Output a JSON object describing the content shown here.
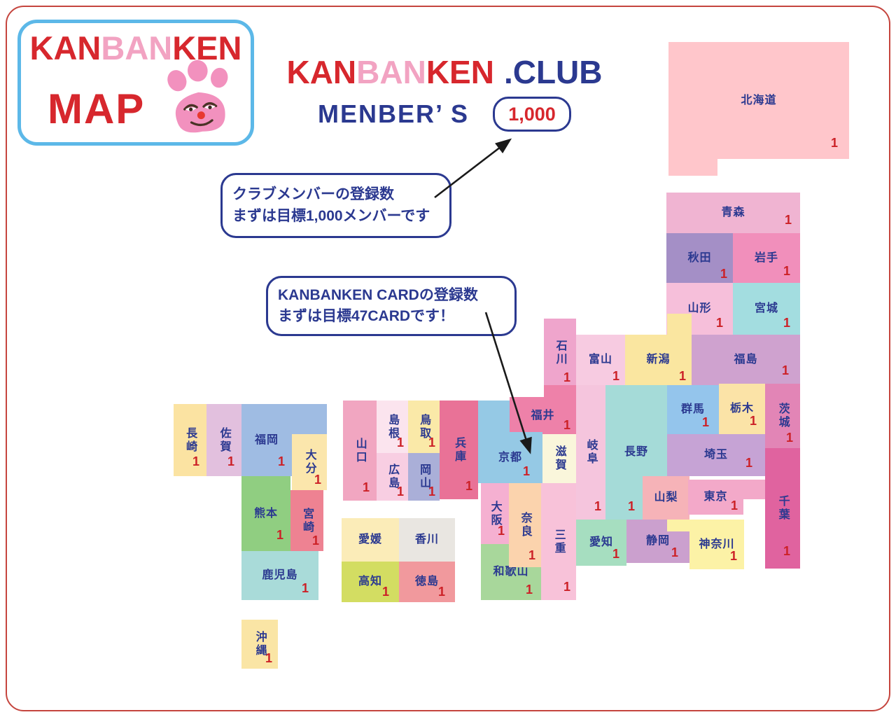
{
  "colors": {
    "brand_red": "#D7272D",
    "brand_pink": "#F2A3C2",
    "brand_navy": "#2B3990",
    "count_red": "#CC2127",
    "page_border_red": "#C5453E",
    "logo_border_blue": "#5CB8E8",
    "paw_pink": "#F291BE"
  },
  "logo": {
    "word_parts": [
      {
        "text": "KAN",
        "color": "#D7272D"
      },
      {
        "text": "BAN",
        "color": "#F2A3C2"
      },
      {
        "text": "KEN",
        "color": "#D7272D"
      }
    ],
    "map_label": "MAP",
    "map_label_color": "#D7272D",
    "paw_icon": "paw-face-icon"
  },
  "title": {
    "word_parts": [
      {
        "text": "KAN",
        "color": "#D7272D"
      },
      {
        "text": "BAN",
        "color": "#F2A3C2"
      },
      {
        "text": "KEN",
        "color": "#D7272D"
      },
      {
        "text": ".CLUB",
        "color": "#2B3990"
      }
    ],
    "members_label": "MENBER’ S",
    "members_count": "1,000"
  },
  "callouts": {
    "club_members": {
      "line1": "クラブメンバーの登録数",
      "line2": "まずは目標1,000メンバーです"
    },
    "card": {
      "line1": "KANBANKEN CARDの登録数",
      "line2": "まずは目標47CARDです！"
    }
  },
  "map": {
    "label_color": "#2B3990",
    "count_color": "#CC2127",
    "prefectures": [
      {
        "name": "北海道",
        "count": "1",
        "color": "#FFC6CB",
        "vertical": false,
        "rects": [
          [
            955,
            60,
            258,
            167
          ],
          [
            955,
            227,
            70,
            24
          ]
        ],
        "num_off": [
          16,
          14
        ]
      },
      {
        "name": "青森",
        "count": "1",
        "color": "#F0B4D2",
        "vertical": false,
        "rects": [
          [
            952,
            275,
            191,
            58
          ]
        ],
        "num_off": [
          12,
          10
        ]
      },
      {
        "name": "秋田",
        "count": "1",
        "color": "#A48FC6",
        "vertical": false,
        "rects": [
          [
            952,
            333,
            95,
            71
          ]
        ]
      },
      {
        "name": "岩手",
        "count": "1",
        "color": "#F18FBB",
        "vertical": false,
        "rects": [
          [
            1047,
            333,
            96,
            71
          ]
        ],
        "num_off": [
          14,
          8
        ]
      },
      {
        "name": "山形",
        "count": "1",
        "color": "#F6BFDA",
        "vertical": false,
        "rects": [
          [
            952,
            404,
            95,
            74
          ]
        ],
        "num_off": [
          14,
          8
        ]
      },
      {
        "name": "宮城",
        "count": "1",
        "color": "#A3DDE0",
        "vertical": false,
        "rects": [
          [
            1047,
            404,
            96,
            74
          ]
        ],
        "num_off": [
          14,
          8
        ]
      },
      {
        "name": "福島",
        "count": "1",
        "color": "#CFA2CF",
        "vertical": false,
        "rects": [
          [
            988,
            478,
            155,
            72
          ]
        ],
        "num_off": [
          16,
          12
        ]
      },
      {
        "name": "新潟",
        "count": "1",
        "color": "#FAE6A0",
        "vertical": false,
        "rects": [
          [
            893,
            478,
            95,
            72
          ],
          [
            953,
            448,
            35,
            32
          ]
        ]
      },
      {
        "name": "石川",
        "count": "1",
        "color": "#EFA5CC",
        "vertical": true,
        "rects": [
          [
            777,
            455,
            46,
            97
          ]
        ]
      },
      {
        "name": "富山",
        "count": "1",
        "color": "#F7CBE1",
        "vertical": false,
        "rects": [
          [
            823,
            478,
            70,
            72
          ]
        ]
      },
      {
        "name": "長野",
        "count": "1",
        "color": "#A5DBD8",
        "vertical": false,
        "rects": [
          [
            865,
            550,
            88,
            192
          ]
        ],
        "num_off": [
          46,
          10
        ]
      },
      {
        "name": "岐阜",
        "count": "1",
        "color": "#F5C5DD",
        "vertical": true,
        "rects": [
          [
            823,
            550,
            42,
            192
          ]
        ],
        "num_off": [
          6,
          10
        ]
      },
      {
        "name": "福井",
        "count": "1",
        "color": "#EE81A9",
        "vertical": false,
        "rects": [
          [
            728,
            567,
            95,
            53
          ],
          [
            777,
            550,
            46,
            18
          ]
        ]
      },
      {
        "name": "滋賀",
        "count": null,
        "color": "#FAF6DB",
        "vertical": true,
        "rects": [
          [
            775,
            620,
            48,
            70
          ]
        ]
      },
      {
        "name": "京都",
        "count": "1",
        "color": "#95C9E5",
        "vertical": false,
        "rects": [
          [
            683,
            617,
            92,
            73
          ],
          [
            683,
            572,
            45,
            46
          ]
        ],
        "num_off": [
          18,
          8
        ]
      },
      {
        "name": "兵庫",
        "count": "1",
        "color": "#E97297",
        "vertical": true,
        "rects": [
          [
            628,
            572,
            55,
            141
          ]
        ],
        "num_off": [
          8,
          10
        ]
      },
      {
        "name": "大阪",
        "count": "1",
        "color": "#F5B0D1",
        "vertical": true,
        "rects": [
          [
            687,
            690,
            40,
            87
          ]
        ],
        "num_off": [
          6,
          10
        ]
      },
      {
        "name": "和歌山",
        "count": "1",
        "color": "#A8D79B",
        "vertical": false,
        "rects": [
          [
            687,
            777,
            86,
            80
          ]
        ],
        "num_off": [
          12,
          6
        ]
      },
      {
        "name": "奈良",
        "count": "1",
        "color": "#FBD3AD",
        "vertical": true,
        "rects": [
          [
            727,
            690,
            46,
            120
          ]
        ],
        "num_off": [
          8,
          8
        ]
      },
      {
        "name": "三重",
        "count": "1",
        "color": "#F8C2D9",
        "vertical": true,
        "rects": [
          [
            773,
            690,
            50,
            167
          ]
        ],
        "num_off": [
          8,
          10
        ]
      },
      {
        "name": "群馬",
        "count": "1",
        "color": "#94C5EC",
        "vertical": false,
        "rects": [
          [
            953,
            550,
            74,
            70
          ]
        ],
        "num_off": [
          14,
          8
        ]
      },
      {
        "name": "栃木",
        "count": "1",
        "color": "#FBE3A7",
        "vertical": false,
        "rects": [
          [
            1027,
            548,
            66,
            72
          ]
        ],
        "num_off": [
          12,
          10
        ]
      },
      {
        "name": "茨城",
        "count": "1",
        "color": "#E285B6",
        "vertical": true,
        "rects": [
          [
            1093,
            548,
            50,
            92
          ]
        ],
        "num_off": [
          10,
          6
        ]
      },
      {
        "name": "埼玉",
        "count": "1",
        "color": "#C6A3D5",
        "vertical": false,
        "rects": [
          [
            953,
            620,
            140,
            60
          ]
        ],
        "num_off": [
          18,
          10
        ]
      },
      {
        "name": "千葉",
        "count": "1",
        "color": "#E0639F",
        "vertical": true,
        "rects": [
          [
            1093,
            640,
            50,
            172
          ]
        ],
        "num_off": [
          14,
          16
        ]
      },
      {
        "name": "山梨",
        "count": null,
        "color": "#F6B3B8",
        "vertical": false,
        "rects": [
          [
            918,
            680,
            67,
            62
          ]
        ]
      },
      {
        "name": "東京",
        "count": "1",
        "color": "#F3A9C9",
        "vertical": false,
        "rects": [
          [
            983,
            685,
            79,
            50
          ],
          [
            1062,
            685,
            31,
            28
          ]
        ],
        "num_off": [
          8,
          4
        ]
      },
      {
        "name": "静岡",
        "count": "1",
        "color": "#CBA0CE",
        "vertical": false,
        "rects": [
          [
            895,
            742,
            90,
            62
          ]
        ],
        "num_off": [
          16,
          6
        ]
      },
      {
        "name": "神奈川",
        "count": "1",
        "color": "#FCF2A6",
        "vertical": false,
        "rects": [
          [
            985,
            742,
            78,
            71
          ],
          [
            953,
            742,
            32,
            17
          ]
        ],
        "num_off": [
          10,
          10
        ]
      },
      {
        "name": "愛知",
        "count": "1",
        "color": "#A6DEC0",
        "vertical": false,
        "rects": [
          [
            823,
            742,
            72,
            66
          ]
        ],
        "num_off": [
          10,
          8
        ]
      },
      {
        "name": "鳥取",
        "count": "1",
        "color": "#FAE9A8",
        "vertical": true,
        "rects": [
          [
            583,
            572,
            45,
            75
          ]
        ],
        "num_off": [
          6,
          6
        ]
      },
      {
        "name": "島根",
        "count": "1",
        "color": "#FBE4EE",
        "vertical": true,
        "rects": [
          [
            538,
            572,
            45,
            75
          ]
        ],
        "num_off": [
          6,
          6
        ]
      },
      {
        "name": "広島",
        "count": "1",
        "color": "#F8CEE2",
        "vertical": true,
        "rects": [
          [
            538,
            647,
            45,
            68
          ]
        ],
        "num_off": [
          6,
          4
        ]
      },
      {
        "name": "岡山",
        "count": "1",
        "color": "#AAAFD8",
        "vertical": true,
        "rects": [
          [
            583,
            647,
            45,
            68
          ]
        ],
        "num_off": [
          6,
          4
        ]
      },
      {
        "name": "山口",
        "count": "1",
        "color": "#F1A6C1",
        "vertical": true,
        "rects": [
          [
            490,
            572,
            48,
            143
          ]
        ],
        "num_off": [
          10,
          10
        ]
      },
      {
        "name": "愛媛",
        "count": null,
        "color": "#FBECB8",
        "vertical": false,
        "rects": [
          [
            488,
            740,
            82,
            62
          ]
        ]
      },
      {
        "name": "香川",
        "count": null,
        "color": "#E9E6E1",
        "vertical": false,
        "rects": [
          [
            570,
            740,
            80,
            62
          ]
        ]
      },
      {
        "name": "高知",
        "count": "1",
        "color": "#D3DD62",
        "vertical": false,
        "rects": [
          [
            488,
            802,
            82,
            58
          ]
        ],
        "num_off": [
          14,
          6
        ]
      },
      {
        "name": "徳島",
        "count": "1",
        "color": "#F1999D",
        "vertical": false,
        "rects": [
          [
            570,
            802,
            80,
            58
          ]
        ],
        "num_off": [
          14,
          6
        ]
      },
      {
        "name": "長崎",
        "count": "1",
        "color": "#FBE3A2",
        "vertical": true,
        "rects": [
          [
            248,
            577,
            47,
            103
          ]
        ],
        "num_off": [
          10,
          12
        ]
      },
      {
        "name": "佐賀",
        "count": "1",
        "color": "#E2C0DE",
        "vertical": true,
        "rects": [
          [
            295,
            577,
            50,
            103
          ]
        ],
        "num_off": [
          10,
          12
        ]
      },
      {
        "name": "福岡",
        "count": "1",
        "color": "#9FBCE3",
        "vertical": false,
        "rects": [
          [
            345,
            577,
            72,
            103
          ],
          [
            417,
            577,
            50,
            43
          ]
        ],
        "num_off": [
          10,
          12
        ]
      },
      {
        "name": "大分",
        "count": "1",
        "color": "#FBE6AC",
        "vertical": true,
        "rects": [
          [
            417,
            620,
            50,
            80
          ]
        ],
        "num_off": [
          8,
          6
        ]
      },
      {
        "name": "熊本",
        "count": "1",
        "color": "#90CE81",
        "vertical": false,
        "rects": [
          [
            345,
            680,
            70,
            107
          ]
        ],
        "num_off": [
          10,
          14
        ]
      },
      {
        "name": "宮崎",
        "count": "1",
        "color": "#EE8292",
        "vertical": true,
        "rects": [
          [
            415,
            700,
            47,
            87
          ]
        ],
        "num_off": [
          6,
          6
        ]
      },
      {
        "name": "鹿児島",
        "count": "1",
        "color": "#A9DBD9",
        "vertical": false,
        "rects": [
          [
            345,
            787,
            110,
            70
          ]
        ],
        "num_off": [
          14,
          8
        ]
      },
      {
        "name": "沖縄",
        "count": "1",
        "color": "#FAE5A5",
        "vertical": true,
        "rects": [
          [
            345,
            885,
            52,
            70
          ]
        ],
        "num_off": [
          8,
          6
        ]
      }
    ]
  }
}
